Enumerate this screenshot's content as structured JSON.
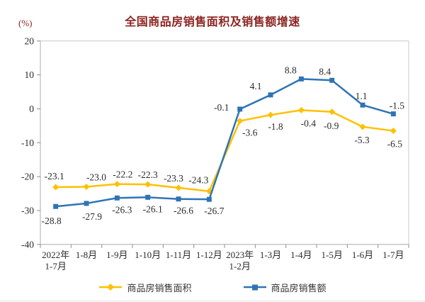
{
  "header": {
    "title": "全国商品房销售面积及销售额增速",
    "unit_label": "(%)"
  },
  "colors": {
    "title_red": "#8B2420",
    "area_yellow": "#FFC000",
    "amount_blue": "#2E74B5",
    "axis_line": "#ABABAB",
    "tick_line": "#8C8C8C",
    "text_dark": "#2B2B2B"
  },
  "chart_data": {
    "type": "line",
    "title": "全国商品房销售面积及销售额增速",
    "unit": "(%)",
    "categories": [
      [
        "2022年",
        "1-7月"
      ],
      [
        "1-8月"
      ],
      [
        "1-9月"
      ],
      [
        "1-10月"
      ],
      [
        "1-11月"
      ],
      [
        "1-12月"
      ],
      [
        "2023年",
        "1-2月"
      ],
      [
        "1-3月"
      ],
      [
        "1-4月"
      ],
      [
        "1-5月"
      ],
      [
        "1-6月"
      ],
      [
        "1-7月"
      ]
    ],
    "series": [
      {
        "name": "商品房销售面积",
        "color": "#FFC000",
        "marker": "diamond",
        "values": [
          -23.1,
          -23.0,
          -22.2,
          -22.3,
          -23.3,
          -24.3,
          -3.6,
          -1.8,
          -0.4,
          -0.9,
          -5.3,
          -6.5
        ],
        "labels": [
          "-23.1",
          "-23.0",
          "-22.2",
          "-22.3",
          "-23.3",
          "-24.3",
          "-3.6",
          "-1.8",
          "-0.4",
          "-0.9",
          "-5.3",
          "-6.5"
        ],
        "label_offsets": [
          [
            -2,
            -11
          ],
          [
            14,
            -9
          ],
          [
            8,
            -9
          ],
          [
            0,
            -9
          ],
          [
            -7,
            -9
          ],
          [
            -15,
            -11
          ],
          [
            14,
            21
          ],
          [
            7,
            21
          ],
          [
            10,
            23
          ],
          [
            -1,
            24
          ],
          [
            -1,
            23
          ],
          [
            2,
            23
          ]
        ]
      },
      {
        "name": "商品房销售额",
        "color": "#2E74B5",
        "marker": "square",
        "values": [
          -28.8,
          -27.9,
          -26.3,
          -26.1,
          -26.6,
          -26.7,
          -0.1,
          4.1,
          8.8,
          8.4,
          1.1,
          -1.5
        ],
        "labels": [
          "-28.8",
          "-27.9",
          "-26.3",
          "-26.1",
          "-26.6",
          "-26.7",
          "-0.1",
          "4.1",
          "8.8",
          "8.4",
          "1.1",
          "-1.5"
        ],
        "label_offsets": [
          [
            -6,
            25
          ],
          [
            8,
            23
          ],
          [
            7,
            21
          ],
          [
            7,
            21
          ],
          [
            7,
            21
          ],
          [
            7,
            21
          ],
          [
            -26,
            2
          ],
          [
            -21,
            -8
          ],
          [
            -15,
            -8
          ],
          [
            -10,
            -8
          ],
          [
            -2,
            -8
          ],
          [
            5,
            -7
          ]
        ]
      }
    ],
    "ylim": [
      -40,
      20
    ],
    "yticks": [
      20,
      10,
      0,
      -10,
      -20,
      -30,
      -40
    ],
    "ylabel": "(%)",
    "xlabel": "",
    "grid": false,
    "legend_position": "bottom"
  }
}
